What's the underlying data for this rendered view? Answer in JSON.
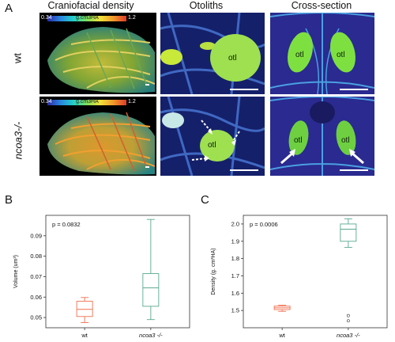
{
  "panel_labels": {
    "a": "A",
    "b": "B",
    "c": "C"
  },
  "column_titles": [
    "Craniofacial density",
    "Otoliths",
    "Cross-section"
  ],
  "row_labels": [
    "wt",
    "ncoa3-/-"
  ],
  "colorbar": {
    "min": "0.34",
    "unit": "g.cm3HA",
    "max": "1.2"
  },
  "otolith_label": "otl",
  "colors": {
    "wt": "#f07050",
    "mutant": "#5aa890",
    "heat_low": "#2a2aa8",
    "heat_high": "#e23a2a",
    "otolith": "#8ee04a"
  },
  "chart_data": [
    {
      "type": "box",
      "panel": "B",
      "categories": [
        "wt",
        "ncoa3 -/-"
      ],
      "ylabel": "Volume (um³)",
      "ylim": [
        0.045,
        0.1
      ],
      "yticks": [
        "0.05",
        "0.06",
        "0.07",
        "0.08",
        "0.09"
      ],
      "annotation": "p = 0.0832",
      "boxes": [
        {
          "name": "wt",
          "whisker_low": 0.0475,
          "q1": 0.0505,
          "median": 0.054,
          "q3": 0.058,
          "whisker_high": 0.0598,
          "outliers": []
        },
        {
          "name": "ncoa3 -/-",
          "whisker_low": 0.049,
          "q1": 0.0555,
          "median": 0.0645,
          "q3": 0.0715,
          "whisker_high": 0.098,
          "outliers": []
        }
      ]
    },
    {
      "type": "box",
      "panel": "C",
      "categories": [
        "wt",
        "ncoa3 -/-"
      ],
      "ylabel": "Density (g. cm³HA)",
      "ylim": [
        1.4,
        2.05
      ],
      "yticks": [
        "1.5",
        "1.6",
        "1.7",
        "1.8",
        "1.9",
        "2.0"
      ],
      "annotation": "p = 0.0006",
      "boxes": [
        {
          "name": "wt",
          "whisker_low": 1.495,
          "q1": 1.505,
          "median": 1.515,
          "q3": 1.525,
          "whisker_high": 1.53,
          "outliers": []
        },
        {
          "name": "ncoa3 -/-",
          "whisker_low": 1.865,
          "q1": 1.9,
          "median": 1.97,
          "q3": 2.0,
          "whisker_high": 2.03,
          "outliers": [
            1.47,
            1.44
          ]
        }
      ]
    }
  ]
}
